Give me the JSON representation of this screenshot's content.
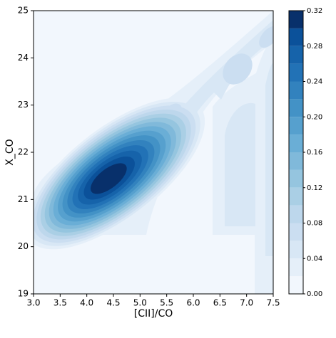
{
  "chart_data": {
    "type": "contour",
    "xlabel": "[CII]/CO",
    "ylabel": "X_CO",
    "xlim": [
      3.0,
      7.5
    ],
    "xticks": [
      {
        "value": 3.0,
        "label": "3.0"
      },
      {
        "value": 3.5,
        "label": "3.5"
      },
      {
        "value": 4.0,
        "label": "4.0"
      },
      {
        "value": 4.5,
        "label": "4.5"
      },
      {
        "value": 5.0,
        "label": "5.0"
      },
      {
        "value": 5.5,
        "label": "5.5"
      },
      {
        "value": 6.0,
        "label": "6.0"
      },
      {
        "value": 6.5,
        "label": "6.5"
      },
      {
        "value": 7.0,
        "label": "7.0"
      },
      {
        "value": 7.5,
        "label": "7.5"
      }
    ],
    "ylim": [
      19,
      25
    ],
    "yticks": [
      19,
      20,
      21,
      22,
      23,
      24,
      25
    ],
    "levels": [
      0,
      0.02,
      0.04,
      0.06,
      0.08,
      0.1,
      0.12,
      0.14,
      0.16,
      0.18,
      0.2,
      0.22,
      0.24,
      0.26,
      0.28,
      0.3,
      0.32
    ],
    "colors": [
      "#f2f7fd",
      "#e5eff9",
      "#d8e7f5",
      "#cbdef1",
      "#bdd7ec",
      "#aacfe5",
      "#95c5df",
      "#80b9da",
      "#6aaed6",
      "#56a0ce",
      "#4392c6",
      "#3282be",
      "#2272b6",
      "#1663aa",
      "#0b519a",
      "#08306b"
    ],
    "colorbar_lim": [
      0,
      0.32
    ],
    "colorbar_ticks": [
      {
        "value": 0,
        "label": "0.00"
      },
      {
        "value": 0.04,
        "label": "0.04"
      },
      {
        "value": 0.08,
        "label": "0.08"
      },
      {
        "value": 0.12,
        "label": "0.12"
      },
      {
        "value": 0.16,
        "label": "0.16"
      },
      {
        "value": 0.2,
        "label": "0.20"
      },
      {
        "value": 0.24,
        "label": "0.24"
      },
      {
        "value": 0.28,
        "label": "0.28"
      },
      {
        "value": 0.32,
        "label": "0.32"
      }
    ]
  }
}
